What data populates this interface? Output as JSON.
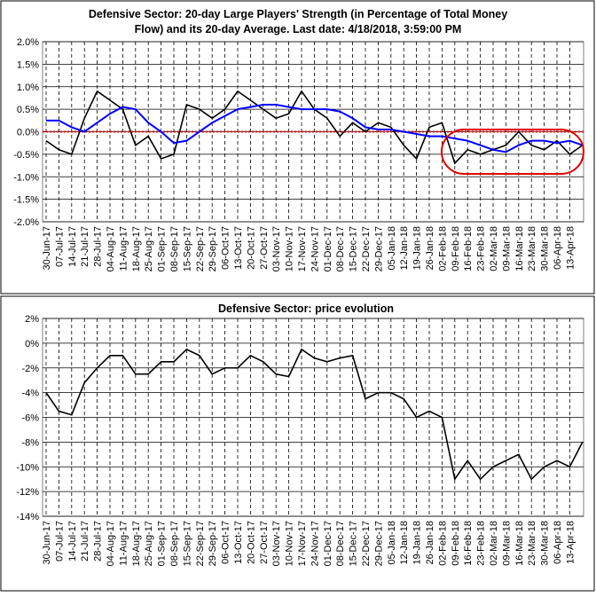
{
  "chart_data": [
    {
      "type": "line",
      "title": "Defensive Sector: 20-day Large Players' Strength (in Percentage of Total Money",
      "subtitle": "Flow) and its 20-day Average. Last date: 4/18/2018, 3:59:00 PM",
      "categories": [
        "30-Jun-17",
        "07-Jul-17",
        "14-Jul-17",
        "21-Jul-17",
        "28-Jul-17",
        "04-Aug-17",
        "11-Aug-17",
        "18-Aug-17",
        "25-Aug-17",
        "01-Sep-17",
        "08-Sep-17",
        "15-Sep-17",
        "22-Sep-17",
        "29-Sep-17",
        "06-Oct-17",
        "13-Oct-17",
        "20-Oct-17",
        "27-Oct-17",
        "03-Nov-17",
        "10-Nov-17",
        "17-Nov-17",
        "24-Nov-17",
        "01-Dec-17",
        "08-Dec-17",
        "15-Dec-17",
        "22-Dec-17",
        "29-Dec-17",
        "05-Jan-18",
        "12-Jan-18",
        "19-Jan-18",
        "26-Jan-18",
        "02-Feb-18",
        "09-Feb-18",
        "16-Feb-18",
        "23-Feb-18",
        "02-Mar-18",
        "09-Mar-18",
        "16-Mar-18",
        "23-Mar-18",
        "30-Mar-18",
        "06-Apr-18",
        "13-Apr-18",
        null
      ],
      "series": [
        {
          "color": "#000000",
          "values": [
            -0.2,
            -0.4,
            -0.5,
            0.3,
            0.9,
            0.7,
            0.5,
            -0.3,
            -0.1,
            -0.6,
            -0.5,
            0.6,
            0.5,
            0.3,
            0.5,
            0.9,
            0.7,
            0.5,
            0.3,
            0.4,
            0.9,
            0.5,
            0.3,
            -0.1,
            0.2,
            0.0,
            0.2,
            0.1,
            -0.3,
            -0.6,
            0.1,
            0.2,
            -0.7,
            -0.4,
            -0.5,
            -0.4,
            -0.3,
            0.0,
            -0.3,
            -0.4,
            -0.2,
            -0.5,
            -0.3
          ]
        },
        {
          "color": "#0000ff",
          "values": [
            0.25,
            0.25,
            0.1,
            0.0,
            0.2,
            0.4,
            0.55,
            0.5,
            0.2,
            0.0,
            -0.25,
            -0.2,
            0.0,
            0.2,
            0.35,
            0.5,
            0.55,
            0.6,
            0.6,
            0.55,
            0.5,
            0.5,
            0.5,
            0.45,
            0.3,
            0.1,
            0.05,
            0.05,
            0.0,
            -0.05,
            -0.1,
            -0.1,
            -0.15,
            -0.2,
            -0.3,
            -0.4,
            -0.45,
            -0.3,
            -0.2,
            -0.2,
            -0.25,
            -0.2,
            -0.3
          ]
        }
      ],
      "reference_line": 0,
      "reference_color": "#ff0000",
      "ylim": [
        -2,
        2
      ],
      "yticks": [
        {
          "value": -2,
          "label": "-2.0%"
        },
        {
          "value": -1.5,
          "label": "-1.5%"
        },
        {
          "value": -1,
          "label": "-1.0%"
        },
        {
          "value": -0.5,
          "label": "-0.5%"
        },
        {
          "value": 0,
          "label": "0.0%"
        },
        {
          "value": 0.5,
          "label": "0.5%"
        },
        {
          "value": 1,
          "label": "1.0%"
        },
        {
          "value": 1.5,
          "label": "1.5%"
        },
        {
          "value": 2,
          "label": "2.0%"
        }
      ],
      "grid": true
    },
    {
      "type": "line",
      "title": "Defensive Sector: price evolution",
      "categories": [
        "30-Jun-17",
        "07-Jul-17",
        "14-Jul-17",
        "21-Jul-17",
        "28-Jul-17",
        "04-Aug-17",
        "11-Aug-17",
        "18-Aug-17",
        "25-Aug-17",
        "01-Sep-17",
        "08-Sep-17",
        "15-Sep-17",
        "22-Sep-17",
        "29-Sep-17",
        "06-Oct-17",
        "13-Oct-17",
        "20-Oct-17",
        "27-Oct-17",
        "03-Nov-17",
        "10-Nov-17",
        "17-Nov-17",
        "24-Nov-17",
        "01-Dec-17",
        "08-Dec-17",
        "15-Dec-17",
        "22-Dec-17",
        "29-Dec-17",
        "05-Jan-18",
        "12-Jan-18",
        "19-Jan-18",
        "26-Jan-18",
        "02-Feb-18",
        "09-Feb-18",
        "16-Feb-18",
        "23-Feb-18",
        "02-Mar-18",
        "09-Mar-18",
        "16-Mar-18",
        "23-Mar-18",
        "30-Mar-18",
        "06-Apr-18",
        "13-Apr-18",
        null
      ],
      "series": [
        {
          "color": "#000000",
          "values": [
            -4,
            -5.5,
            -5.8,
            -3.2,
            -2,
            -1,
            -1,
            -2.5,
            -2.5,
            -1.5,
            -1.5,
            -0.5,
            -1,
            -2.5,
            -2,
            -2,
            -1,
            -1.5,
            -2.5,
            -2.7,
            -0.5,
            -1.2,
            -1.5,
            -1.2,
            -1,
            -4.5,
            -4,
            -4,
            -4.5,
            -6,
            -5.5,
            -6,
            -11,
            -9.5,
            -11,
            -10,
            -9.5,
            -9,
            -11,
            -10,
            -9.5,
            -10,
            -8
          ]
        }
      ],
      "ylim": [
        -14,
        2
      ],
      "yticks": [
        {
          "value": -14,
          "label": "-14%"
        },
        {
          "value": -12,
          "label": "-12%"
        },
        {
          "value": -10,
          "label": "-10%"
        },
        {
          "value": -8,
          "label": "-8%"
        },
        {
          "value": -6,
          "label": "-6%"
        },
        {
          "value": -4,
          "label": "-4%"
        },
        {
          "value": -2,
          "label": "-2%"
        },
        {
          "value": 0,
          "label": "0%"
        },
        {
          "value": 2,
          "label": "2%"
        }
      ],
      "grid": true
    }
  ]
}
